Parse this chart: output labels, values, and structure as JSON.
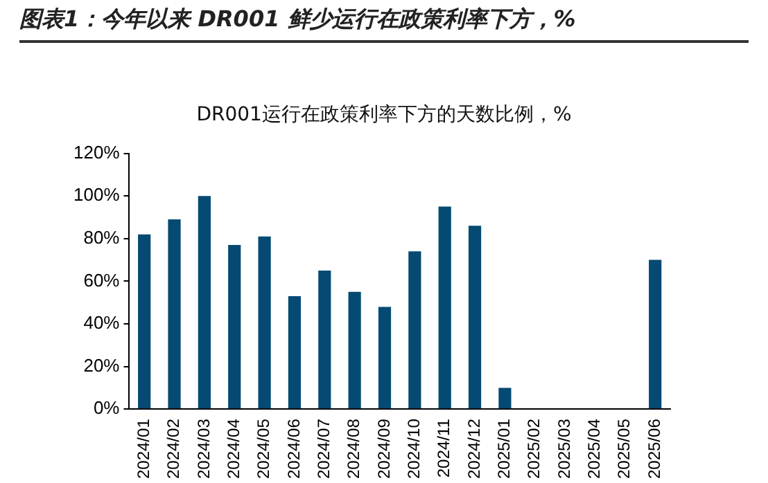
{
  "chart_data": {
    "type": "bar",
    "title": "图表1：今年以来 DR001 鲜少运行在政策利率下方，%",
    "subtitle": "DR001运行在政策利率下方的天数比例，%",
    "categories": [
      "2024/01",
      "2024/02",
      "2024/03",
      "2024/04",
      "2024/05",
      "2024/06",
      "2024/07",
      "2024/08",
      "2024/09",
      "2024/10",
      "2024/11",
      "2024/12",
      "2025/01",
      "2025/02",
      "2025/03",
      "2025/04",
      "2025/05",
      "2025/06"
    ],
    "values": [
      82,
      89,
      100,
      77,
      81,
      53,
      65,
      55,
      48,
      74,
      95,
      86,
      10,
      0,
      0,
      0,
      0,
      70
    ],
    "color": "#054a72",
    "ylim": [
      0,
      120
    ],
    "yticks": [
      {
        "value": 0,
        "label": "0%"
      },
      {
        "value": 20,
        "label": "20%"
      },
      {
        "value": 40,
        "label": "40%"
      },
      {
        "value": 60,
        "label": "60%"
      },
      {
        "value": 80,
        "label": "80%"
      },
      {
        "value": 100,
        "label": "100%"
      },
      {
        "value": 120,
        "label": "120%"
      }
    ],
    "grid": false,
    "legend": false
  }
}
